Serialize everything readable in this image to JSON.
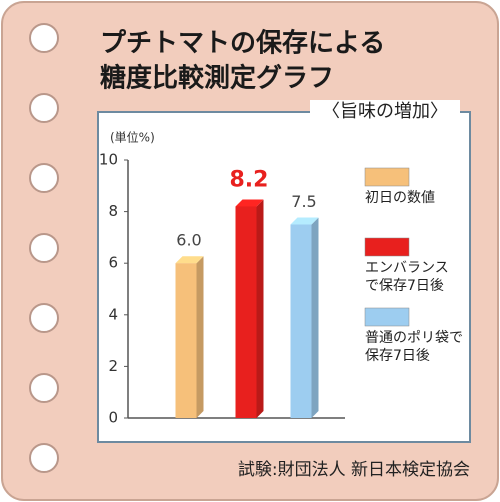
{
  "chart_data": {
    "type": "bar",
    "title": [
      "プチトマトの保存による",
      "糖度比較測定グラフ"
    ],
    "subtitle": "〈旨味の増加〉",
    "y_label": "(単位%)",
    "ylim": [
      0,
      10
    ],
    "yticks": [
      0,
      2,
      4,
      6,
      8,
      10
    ],
    "series": [
      {
        "name": "初日の数値",
        "color": "#f6c07a",
        "values": [
          6.0
        ],
        "value_labels": [
          "6.0"
        ]
      },
      {
        "name": "エンバランス\nで保存7日後",
        "color": "#e8201e",
        "values": [
          8.2
        ],
        "value_labels": [
          "8.2"
        ]
      },
      {
        "name": "普通のポリ袋で\n保存7日後",
        "color": "#9dcdf0",
        "values": [
          7.5
        ],
        "value_labels": [
          "7.5"
        ]
      }
    ],
    "legend": "right",
    "source": "試験:財団法人 新日本検定協会"
  }
}
